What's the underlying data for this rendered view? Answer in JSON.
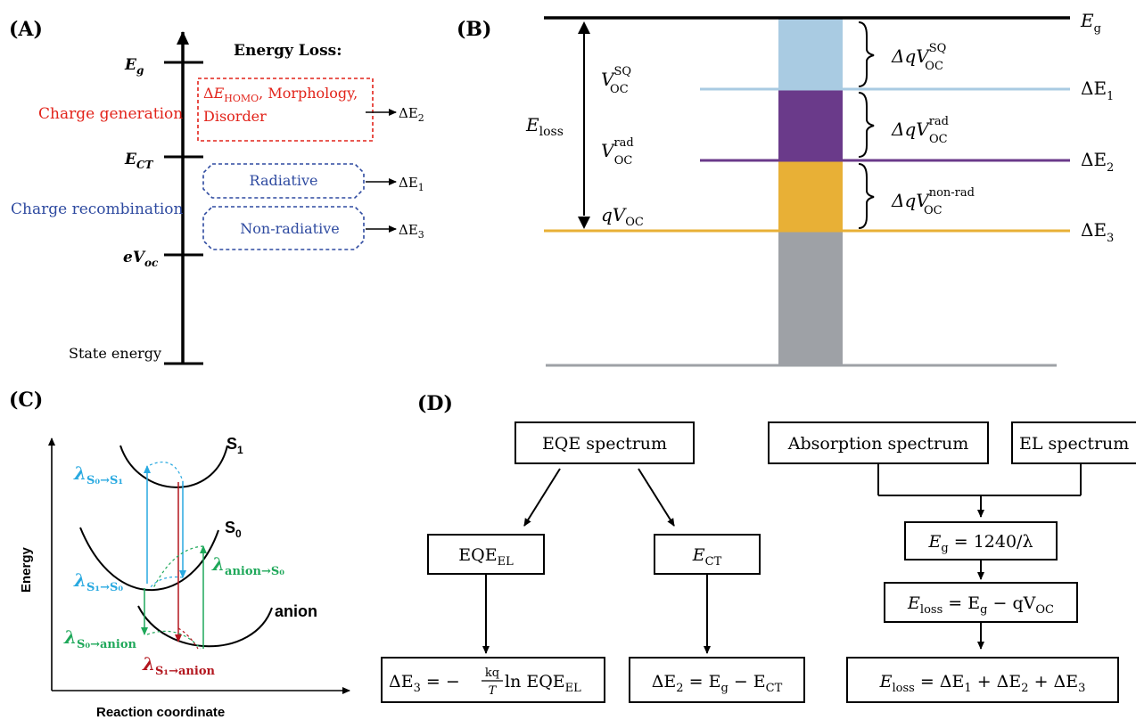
{
  "panel_labels": {
    "a": "(A)",
    "b": "(B)",
    "c": "(C)",
    "d": "(D)"
  },
  "panel_a": {
    "header": "Energy Loss:",
    "levels": {
      "eg": "E",
      "eg_sub": "g",
      "ect": "E",
      "ect_sub": "CT",
      "evoc_e": "eV",
      "evoc_sub": "oc"
    },
    "state_energy": "State energy",
    "charge_generation": "Charge generation",
    "charge_recombination": "Charge recombination",
    "box_red_line1_delta": "Δ",
    "box_red_line1_E": "E",
    "box_red_line1_sub": "HOMO",
    "box_red_line1_rest": ", Morphology,",
    "box_red_line2": "Disorder",
    "radiative": "Radiative",
    "non_radiative": "Non-radiative",
    "arrow_labels": {
      "e2": "ΔE",
      "e2_sub": "2",
      "e1": "ΔE",
      "e1_sub": "1",
      "e3": "ΔE",
      "e3_sub": "3"
    }
  },
  "panel_b": {
    "eg": "E",
    "eg_sub": "g",
    "de1": "ΔE",
    "de1_sub": "1",
    "de2": "ΔE",
    "de2_sub": "2",
    "de3": "ΔE",
    "de3_sub": "3",
    "eloss": "E",
    "eloss_sub": "loss",
    "voc_sq": "V",
    "voc_sq_sup": "SQ",
    "voc_sq_sub": "OC",
    "voc_rad": "V",
    "voc_rad_sup": "rad",
    "voc_rad_sub": "OC",
    "qvoc": "qV",
    "qvoc_sub": "OC",
    "dq_sq": "ΔqV",
    "dq_sq_sup": "SQ",
    "dq_sq_sub": "OC",
    "dq_rad": "ΔqV",
    "dq_rad_sup": "rad",
    "dq_rad_sub": "OC",
    "dq_nonrad": "ΔqV",
    "dq_nonrad_sup": "non-rad",
    "dq_nonrad_sub": "OC",
    "colors": {
      "blue": "#a9cbe2",
      "purple": "#6a3a8a",
      "orange": "#e8b036",
      "gray": "#9ea1a6"
    }
  },
  "panel_c": {
    "y_axis": "Energy",
    "x_axis": "Reaction coordinate",
    "s1": "S",
    "s1_sub": "1",
    "s0": "S",
    "s0_sub": "0",
    "anion": "anion",
    "lam_s0_s1": "λ",
    "lam_s0_s1_sub": "S₀→S₁",
    "lam_s1_s0": "λ",
    "lam_s1_s0_sub": "S₁→S₀",
    "lam_anion_s0": "λ",
    "lam_anion_s0_sub": "anion→S₀",
    "lam_s0_anion": "λ",
    "lam_s0_anion_sub": "S₀→anion",
    "lam_s1_anion": "λ",
    "lam_s1_anion_sub": "S₁→anion",
    "colors": {
      "cyan": "#29a9e0",
      "green": "#1fa85a",
      "red": "#b3161e"
    }
  },
  "panel_d": {
    "eqe_spectrum": "EQE spectrum",
    "absorption_spectrum": "Absorption spectrum",
    "el_spectrum": "EL spectrum",
    "eqe_el": "EQE",
    "eqe_el_sub": "EL",
    "ect": "E",
    "ect_sub": "CT",
    "eg_eq_lhs": "E",
    "eg_eq_sub": "g",
    "eg_eq_rhs": " = 1240/λ",
    "eloss_eq_lhs": "E",
    "eloss_eq_sub": "loss",
    "eloss_eq_mid": " = E",
    "eloss_eq_mid_sub": "g",
    "eloss_eq_rhs": " − qV",
    "eloss_eq_rhs_sub": "OC",
    "de3_eq": "ΔE",
    "de3_eq_sub": "3",
    "de3_eq_mid": " = −",
    "de3_eq_num": "kq",
    "de3_eq_den": "T",
    "de3_eq_rhs": " ln EQE",
    "de3_eq_rhs_sub": "EL",
    "de2_eq": "ΔE",
    "de2_eq_sub": "2",
    "de2_eq_mid": " = E",
    "de2_eq_mid_sub": "g",
    "de2_eq_rhs": " − E",
    "de2_eq_rhs_sub": "CT",
    "sum_eq": "E",
    "sum_eq_sub": "loss",
    "sum_eq_rhs": " = ΔE",
    "sum_eq_s1": "1",
    "sum_eq_p": " + ΔE",
    "sum_eq_s2": "2",
    "sum_eq_p2": " + ΔE",
    "sum_eq_s3": "3"
  }
}
